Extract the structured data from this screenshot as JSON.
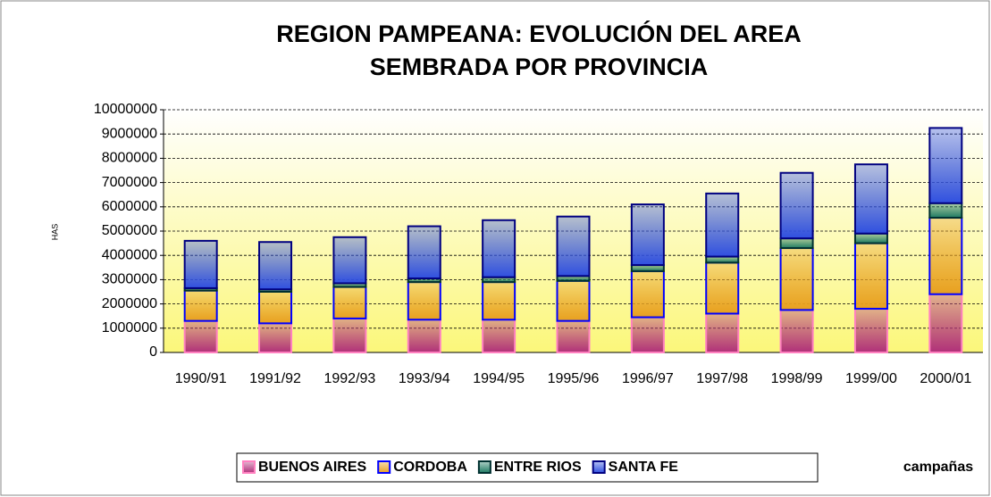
{
  "chart_data": {
    "type": "stacked_bar",
    "title": [
      "REGION PAMPEANA: EVOLUCIÓN DEL AREA",
      "SEMBRADA POR PROVINCIA"
    ],
    "y_label": "HAS",
    "x_label": "campañas",
    "categories": [
      "1990/91",
      "1991/92",
      "1992/93",
      "1993/94",
      "1994/95",
      "1995/96",
      "1996/97",
      "1997/98",
      "1998/99",
      "1999/00",
      "2000/01"
    ],
    "series": [
      {
        "name": "BUENOS AIRES",
        "color": "#b0307a",
        "values": [
          1300000,
          1200000,
          1400000,
          1350000,
          1350000,
          1300000,
          1450000,
          1600000,
          1750000,
          1800000,
          2400000
        ]
      },
      {
        "name": "CORDOBA",
        "color": "#e8a020",
        "values": [
          1250000,
          1300000,
          1300000,
          1550000,
          1550000,
          1650000,
          1900000,
          2100000,
          2550000,
          2700000,
          3150000
        ]
      },
      {
        "name": "ENTRE RIOS",
        "color": "#1e7a62",
        "values": [
          100000,
          100000,
          150000,
          150000,
          200000,
          200000,
          250000,
          250000,
          400000,
          400000,
          600000
        ]
      },
      {
        "name": "SANTA FE",
        "color": "#3050e0",
        "values": [
          1950000,
          1950000,
          1900000,
          2150000,
          2350000,
          2450000,
          2500000,
          2600000,
          2700000,
          2850000,
          3100000
        ]
      }
    ],
    "ylim": [
      0,
      10000000
    ],
    "yticks": [
      0,
      1000000,
      2000000,
      3000000,
      4000000,
      5000000,
      6000000,
      7000000,
      8000000,
      9000000,
      10000000
    ],
    "grid": true,
    "legend": "bottom"
  }
}
